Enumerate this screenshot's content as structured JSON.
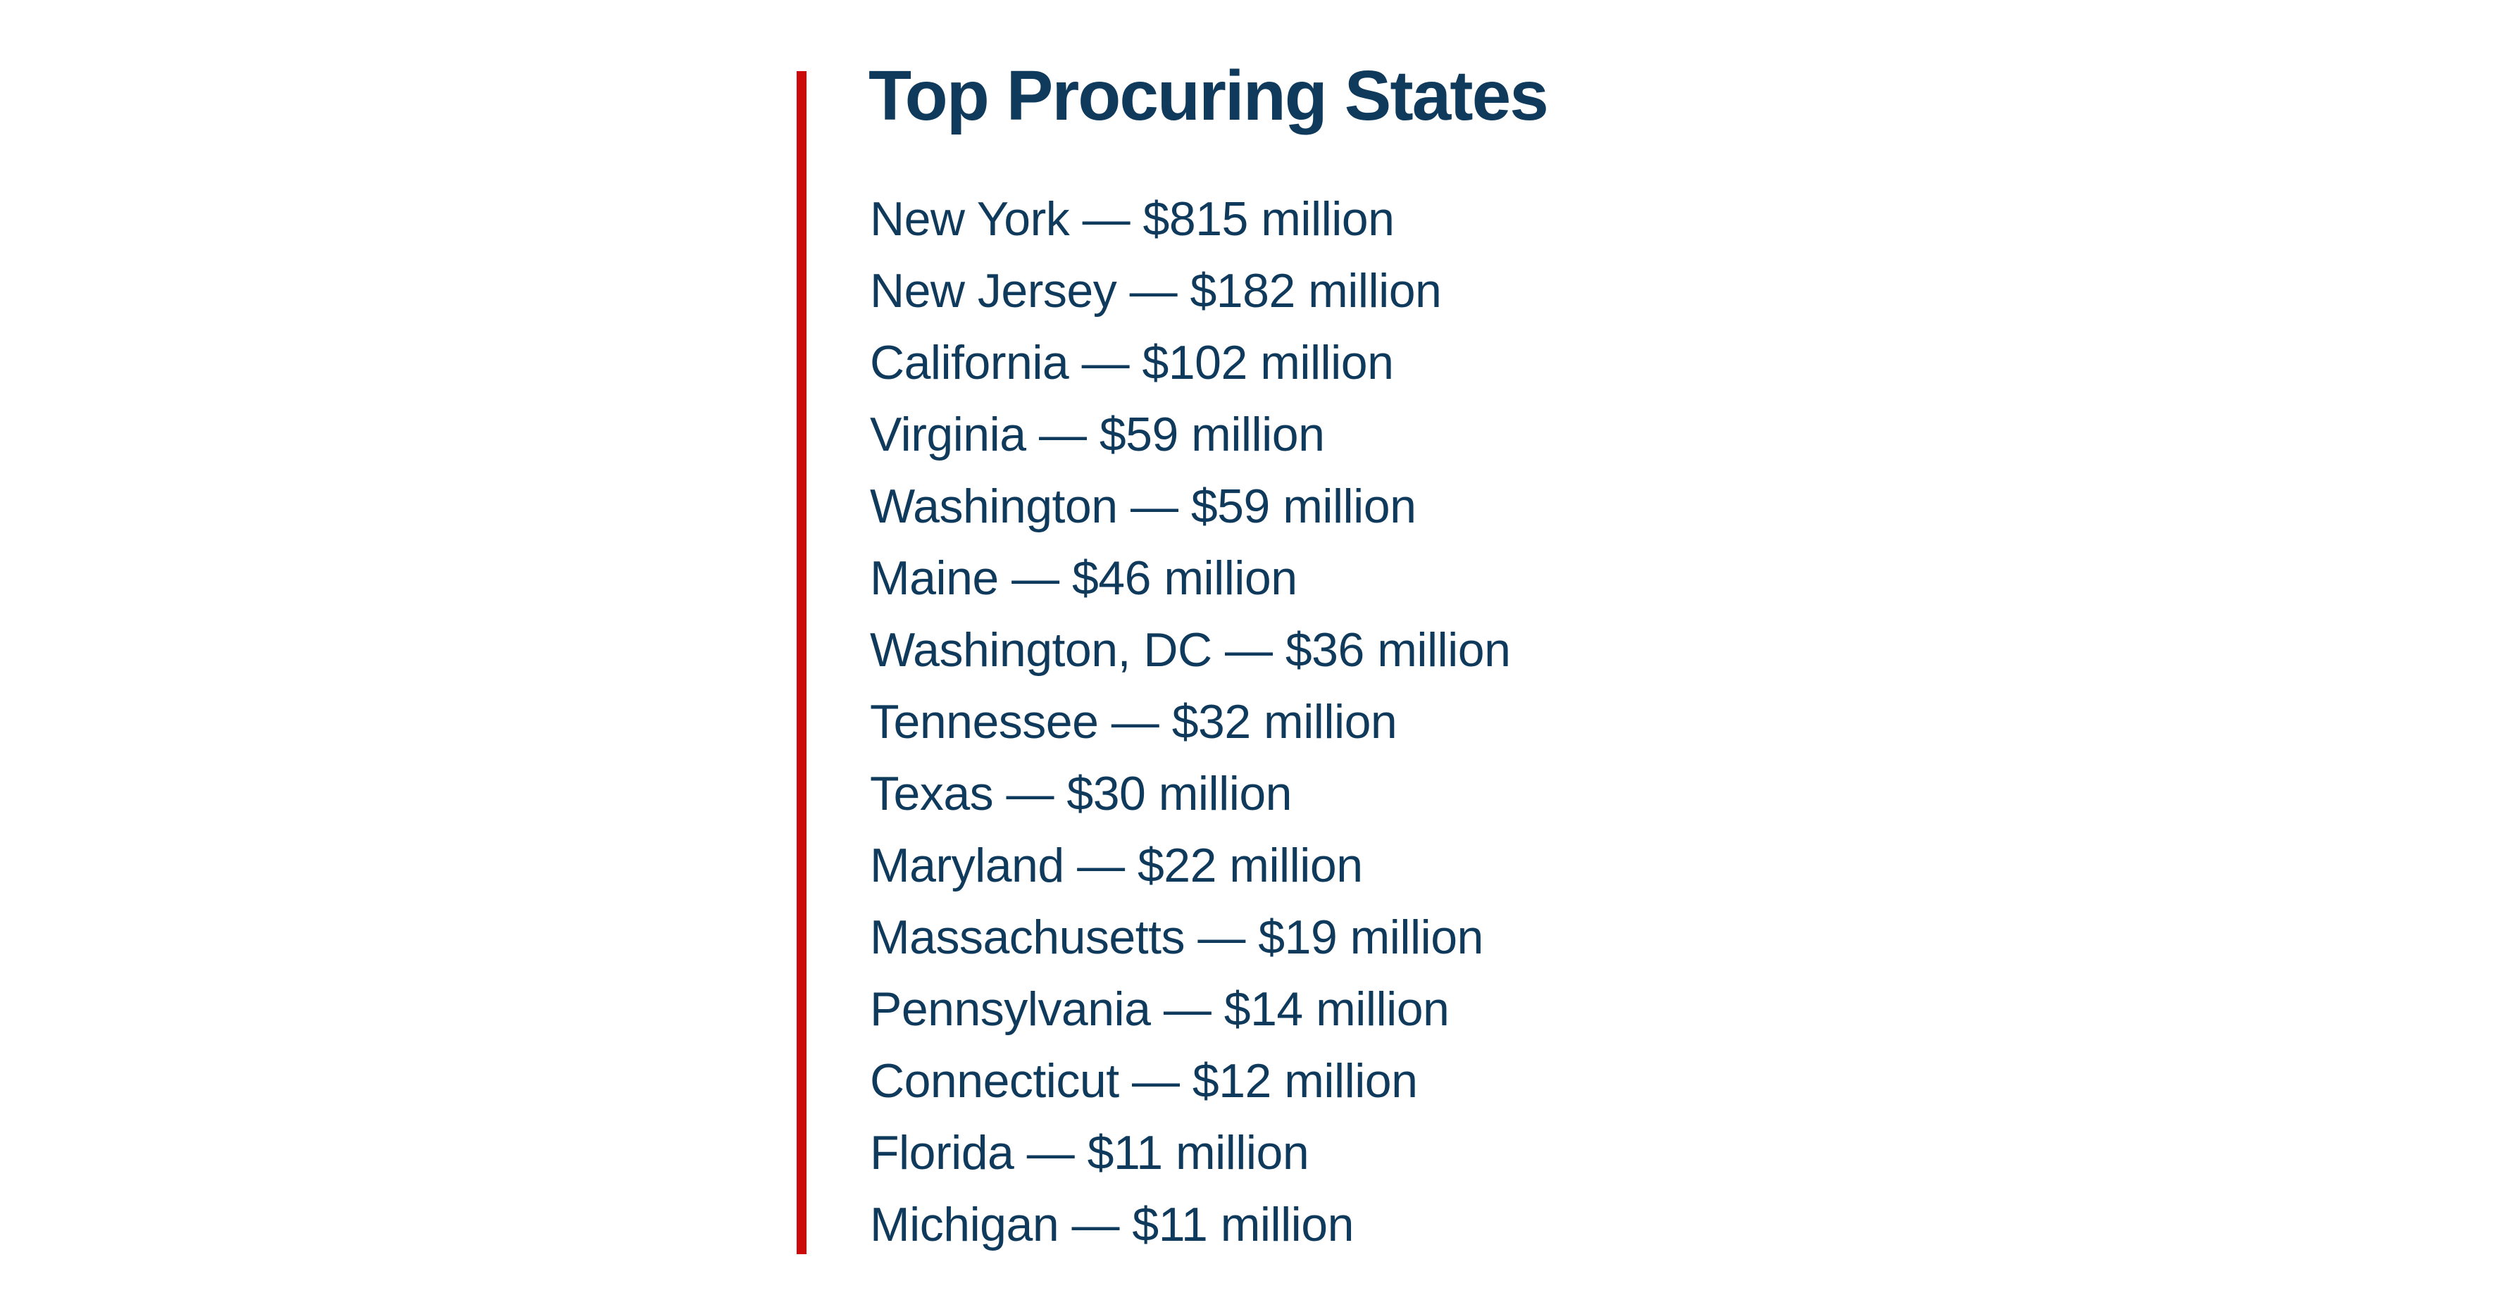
{
  "title": "Top Procuring States",
  "accent_color": "#cc0a0a",
  "text_color": "#0f3a5c",
  "items": [
    "New York — $815 million",
    "New Jersey — $182 million",
    "California — $102 million",
    "Virginia — $59 million",
    "Washington — $59 million",
    "Maine — $46 million",
    "Washington, DC — $36 million",
    "Tennessee — $32 million",
    "Texas — $30 million",
    "Maryland — $22 million",
    "Massachusetts — $19 million",
    "Pennsylvania — $14 million",
    "Connecticut — $12 million",
    "Florida — $11 million",
    "Michigan — $11 million"
  ]
}
